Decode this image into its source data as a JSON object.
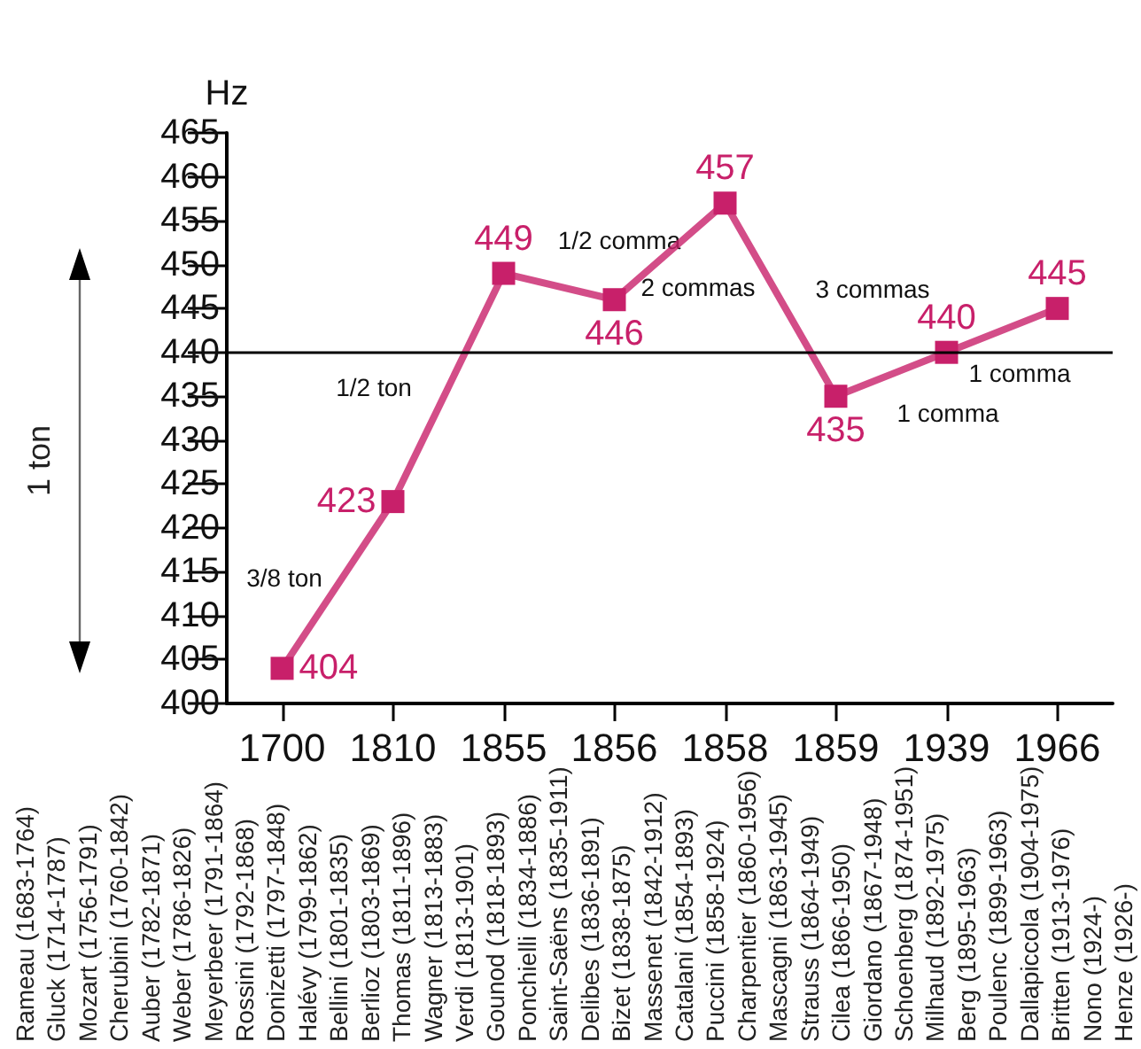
{
  "chart_data": {
    "type": "line",
    "ylabel": "Hz",
    "categories": [
      "1700",
      "1810",
      "1855",
      "1856",
      "1858",
      "1859",
      "1939",
      "1966"
    ],
    "series": [
      {
        "color": "#c8206a",
        "values": [
          404,
          423,
          449,
          446,
          457,
          435,
          440,
          445
        ]
      }
    ],
    "ylim": [
      400,
      465
    ],
    "yticks": [
      400,
      405,
      410,
      415,
      420,
      425,
      430,
      435,
      440,
      445,
      450,
      455,
      460,
      465
    ],
    "data_labels": true,
    "marker": "square",
    "grid": false,
    "ref_lines": [
      {
        "axis": "y",
        "value": 440,
        "color": "#000000"
      }
    ],
    "annotations": [
      "3/8 ton",
      "1/2 ton",
      "1/2 comma",
      "2 commas",
      "3 commas",
      "1 comma",
      "1 comma",
      "1 ton",
      "Rameau (1683-1764)",
      "Gluck (1714-1787)",
      "Mozart (1756-1791)",
      "Cherubini (1760-1842)",
      "Auber (1782-1871)",
      "Weber (1786-1826)",
      "Meyerbeer (1791-1864)",
      "Rossini (1792-1868)",
      "Donizetti (1797-1848)",
      "Halévy (1799-1862)",
      "Bellini (1801-1835)",
      "Berlioz (1803-1869)",
      "Thomas (1811-1896)",
      "Wagner (1813-1883)",
      "Verdi (1813-1901)",
      "Gounod (1818-1893)",
      "Ponchielli (1834-1886)",
      "Saint-Saëns (1835-1911)",
      "Delibes (1836-1891)",
      "Bizet (1838-1875)",
      "Massenet (1842-1912)",
      "Catalani (1854-1893)",
      "Puccini (1858-1924)",
      "Charpentier (1860-1956)",
      "Mascagni (1863-1945)",
      "Strauss (1864-1949)",
      "Cilea (1866-1950)",
      "Giordano (1867-1948)",
      "Schoenberg (1874-1951)",
      "Milhaud (1892-1975)",
      "Berg (1895-1963)",
      "Poulenc (1899-1963)",
      "Dallapiccola (1904-1975)",
      "Britten (1913-1976)",
      "Nono (1924-)",
      "Henze (1926-)"
    ]
  }
}
